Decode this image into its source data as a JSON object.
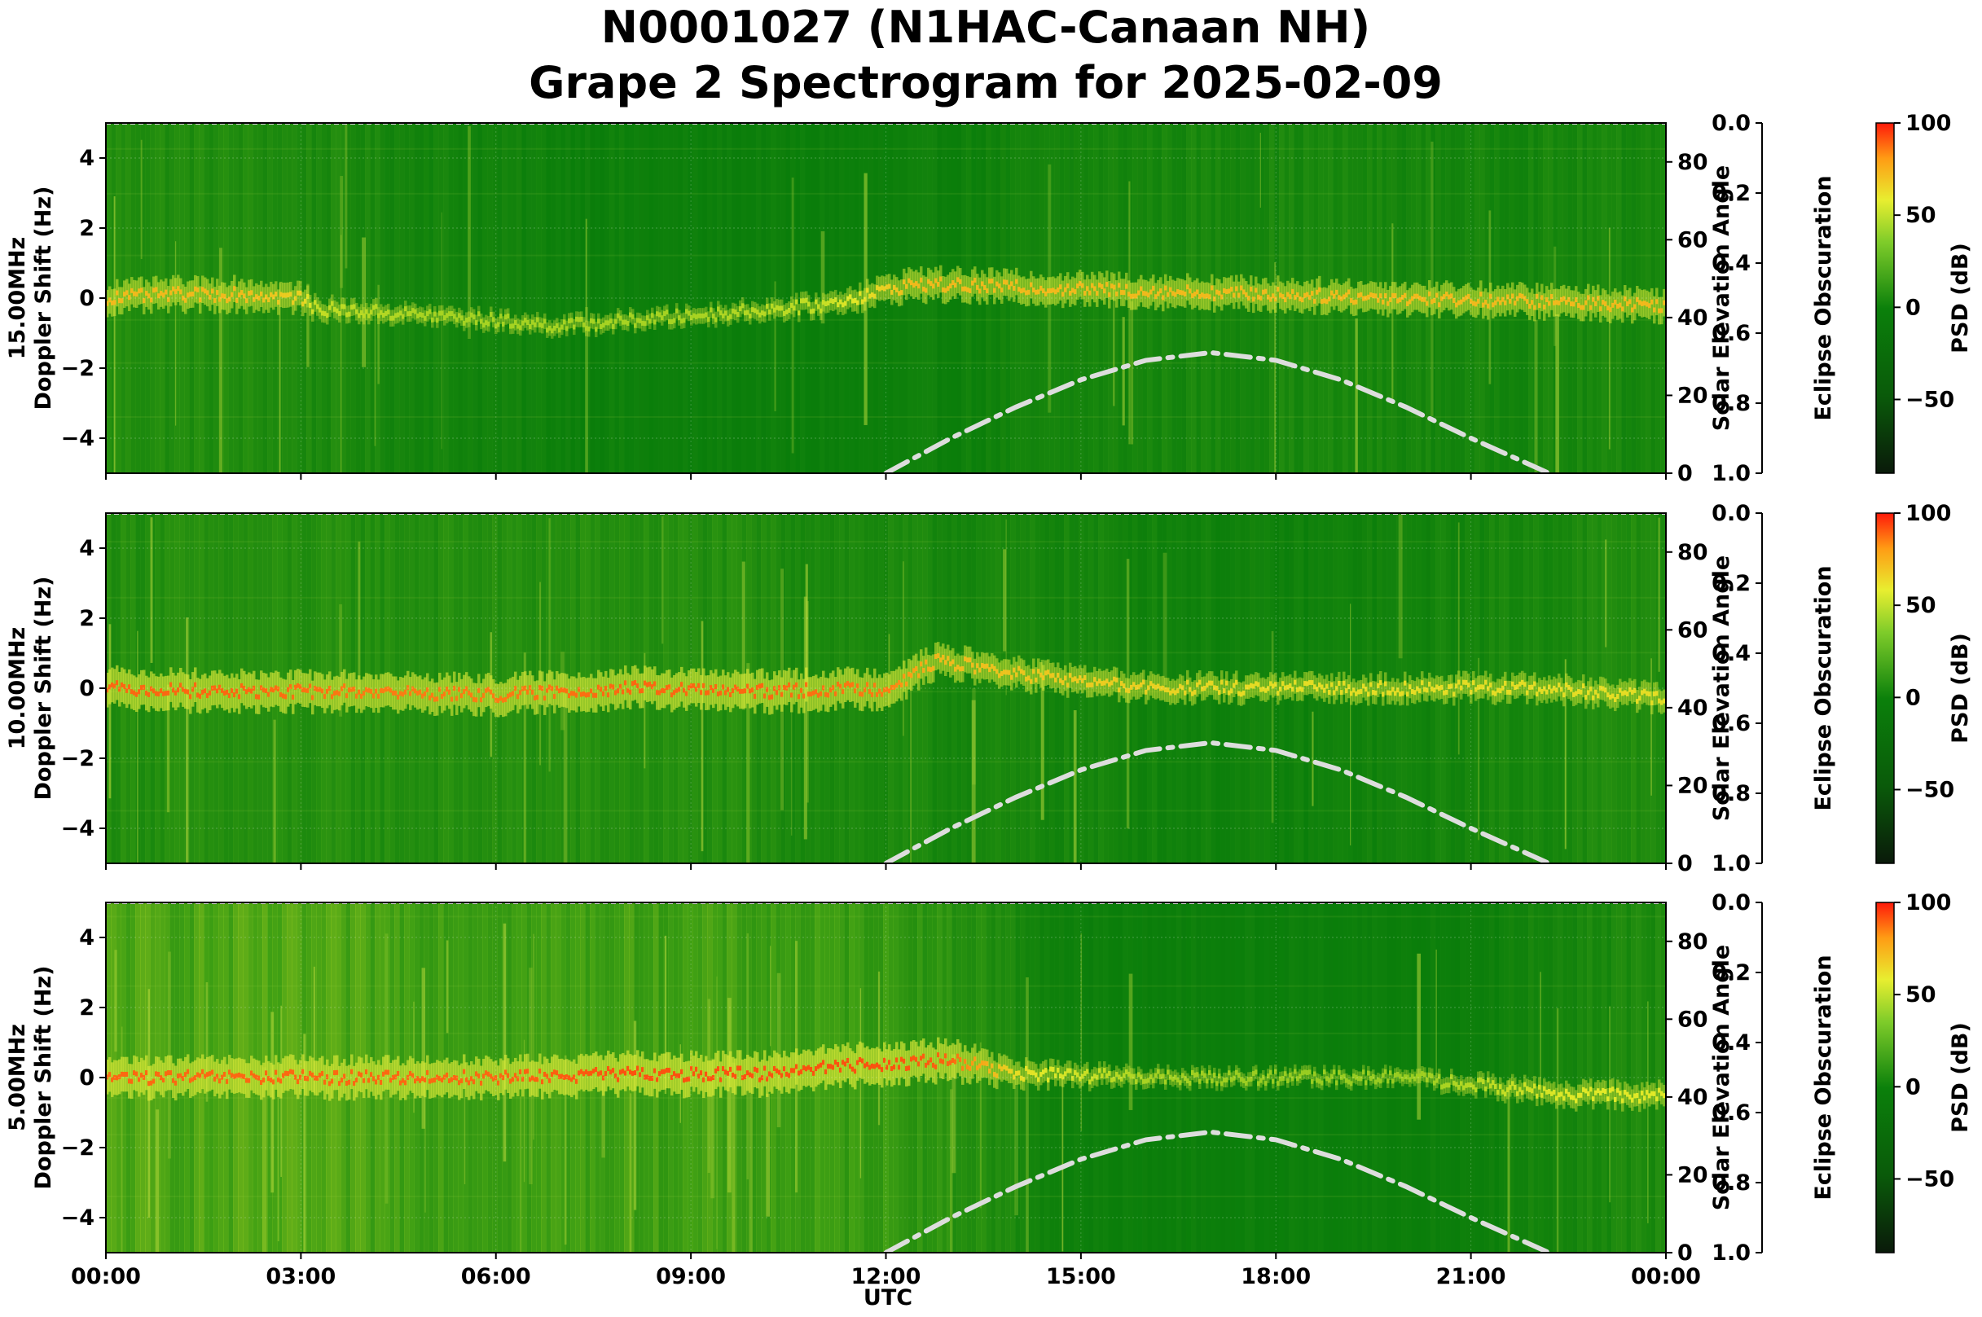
{
  "title_line1": "N0001027 (N1HAC-Canaan NH)",
  "title_line2": "Grape 2 Spectrogram for 2025-02-09",
  "chart_data": {
    "type": "heatmap",
    "xlabel": "UTC",
    "x_ticks": [
      "00:00",
      "03:00",
      "06:00",
      "09:00",
      "12:00",
      "15:00",
      "18:00",
      "21:00",
      "00:00"
    ],
    "xlim_hours": [
      0,
      24
    ],
    "colors": {
      "spectrogram_background": "#0a7d0a",
      "ridge_yellow": "#e6ee3a",
      "ridge_red": "#ff3300",
      "solar_curve": "#dddddd"
    },
    "panels": [
      {
        "ylabel_freq": "15.00MHz",
        "ylabel": "Doppler Shift (Hz)",
        "ylim": [
          -5,
          5
        ],
        "y_ticks": [
          "4",
          "2",
          "0",
          "−2",
          "−4"
        ],
        "y2_label": "Solar Elevation Angle",
        "y2_ticks": [
          "80",
          "60",
          "40",
          "20",
          "0"
        ],
        "y2lim": [
          0,
          90
        ],
        "eclipse_label": "Eclipse Obscuration",
        "eclipse_ticks": [
          "0.0",
          "0.2",
          "0.4",
          "0.6",
          "0.8",
          "1.0"
        ],
        "cbar_label": "PSD (dB)",
        "cbar_ticks": [
          "100",
          "50",
          "0",
          "−50"
        ],
        "cbar_range": [
          -90,
          100
        ],
        "solar_elevation": {
          "hours": [
            12,
            13,
            14,
            15,
            16,
            17,
            18,
            19,
            20,
            21,
            22.2
          ],
          "deg": [
            0,
            9,
            17,
            24,
            29,
            31,
            29,
            24,
            17,
            9,
            0
          ]
        },
        "ridge": {
          "hours": [
            0,
            1,
            2,
            3,
            3.2,
            5,
            7,
            9,
            11,
            12.4,
            14,
            16,
            18,
            20,
            22,
            24
          ],
          "hz": [
            0,
            0.1,
            0.1,
            0,
            -0.3,
            -0.5,
            -0.8,
            -0.5,
            -0.2,
            0.4,
            0.3,
            0.2,
            0.1,
            0,
            -0.1,
            -0.2
          ],
          "level": [
            0.6,
            0.6,
            0.6,
            0.5,
            0.3,
            0.2,
            0.2,
            0.2,
            0.3,
            0.6,
            0.6,
            0.6,
            0.6,
            0.6,
            0.6,
            0.6
          ]
        },
        "noise": {
          "hours": [
            0,
            3,
            6,
            9,
            12,
            15,
            18,
            21,
            24
          ],
          "level": [
            0.45,
            0.4,
            0.25,
            0.15,
            0.15,
            0.3,
            0.35,
            0.3,
            0.35
          ]
        }
      },
      {
        "ylabel_freq": "10.00MHz",
        "ylabel": "Doppler Shift (Hz)",
        "ylim": [
          -5,
          5
        ],
        "y_ticks": [
          "4",
          "2",
          "0",
          "−2",
          "−4"
        ],
        "y2_label": "Solar Elevation Angle",
        "y2_ticks": [
          "80",
          "60",
          "40",
          "20",
          "0"
        ],
        "y2lim": [
          0,
          90
        ],
        "eclipse_label": "Eclipse Obscuration",
        "eclipse_ticks": [
          "0.0",
          "0.2",
          "0.4",
          "0.6",
          "0.8",
          "1.0"
        ],
        "cbar_label": "PSD (dB)",
        "cbar_ticks": [
          "100",
          "50",
          "0",
          "−50"
        ],
        "cbar_range": [
          -90,
          100
        ],
        "solar_elevation": {
          "hours": [
            12,
            13,
            14,
            15,
            16,
            17,
            18,
            19,
            20,
            21,
            22.2
          ],
          "deg": [
            0,
            9,
            17,
            24,
            29,
            31,
            29,
            24,
            17,
            9,
            0
          ]
        },
        "ridge": {
          "hours": [
            0,
            2,
            4,
            6,
            8,
            10,
            12,
            12.8,
            14,
            16,
            18,
            20,
            22,
            24
          ],
          "hz": [
            0,
            -0.1,
            -0.1,
            -0.2,
            0,
            -0.1,
            0,
            0.8,
            0.4,
            0,
            0,
            0,
            0,
            -0.3
          ],
          "level": [
            0.85,
            0.85,
            0.8,
            0.8,
            0.85,
            0.85,
            0.8,
            0.6,
            0.55,
            0.5,
            0.45,
            0.45,
            0.45,
            0.45
          ]
        },
        "noise": {
          "hours": [
            0,
            3,
            6,
            9,
            12,
            15,
            18,
            21,
            24
          ],
          "level": [
            0.45,
            0.45,
            0.45,
            0.45,
            0.35,
            0.3,
            0.2,
            0.3,
            0.45
          ]
        }
      },
      {
        "ylabel_freq": "5.00MHz",
        "ylabel": "Doppler Shift (Hz)",
        "ylim": [
          -5,
          5
        ],
        "y_ticks": [
          "4",
          "2",
          "0",
          "−2",
          "−4"
        ],
        "y2_label": "Solar Elevation Angle",
        "y2_ticks": [
          "80",
          "60",
          "40",
          "20",
          "0"
        ],
        "y2lim": [
          0,
          90
        ],
        "eclipse_label": "Eclipse Obscuration",
        "eclipse_ticks": [
          "0.0",
          "0.2",
          "0.4",
          "0.6",
          "0.8",
          "1.0"
        ],
        "cbar_label": "PSD (dB)",
        "cbar_ticks": [
          "100",
          "50",
          "0",
          "−50"
        ],
        "cbar_range": [
          -90,
          100
        ],
        "solar_elevation": {
          "hours": [
            12,
            13,
            14,
            15,
            16,
            17,
            18,
            19,
            20,
            21,
            22.2
          ],
          "deg": [
            0,
            9,
            17,
            24,
            29,
            31,
            29,
            24,
            17,
            9,
            0
          ]
        },
        "ridge": {
          "hours": [
            0,
            2,
            4,
            6,
            8,
            10,
            11,
            12,
            13,
            14,
            16,
            18,
            20,
            22.5,
            24
          ],
          "hz": [
            0,
            0,
            0,
            0,
            0.1,
            0.1,
            0.3,
            0.4,
            0.5,
            0.1,
            0,
            0,
            0,
            -0.5,
            -0.5
          ],
          "level": [
            0.85,
            0.85,
            0.85,
            0.85,
            0.9,
            0.9,
            0.9,
            0.9,
            0.85,
            0.45,
            0.2,
            0.15,
            0.15,
            0.4,
            0.4
          ]
        },
        "noise": {
          "hours": [
            0,
            3,
            6,
            9,
            12,
            13.5,
            15,
            18,
            21,
            22.5,
            24
          ],
          "level": [
            0.7,
            0.7,
            0.65,
            0.65,
            0.6,
            0.45,
            0.15,
            0.15,
            0.15,
            0.35,
            0.4
          ]
        }
      }
    ]
  }
}
